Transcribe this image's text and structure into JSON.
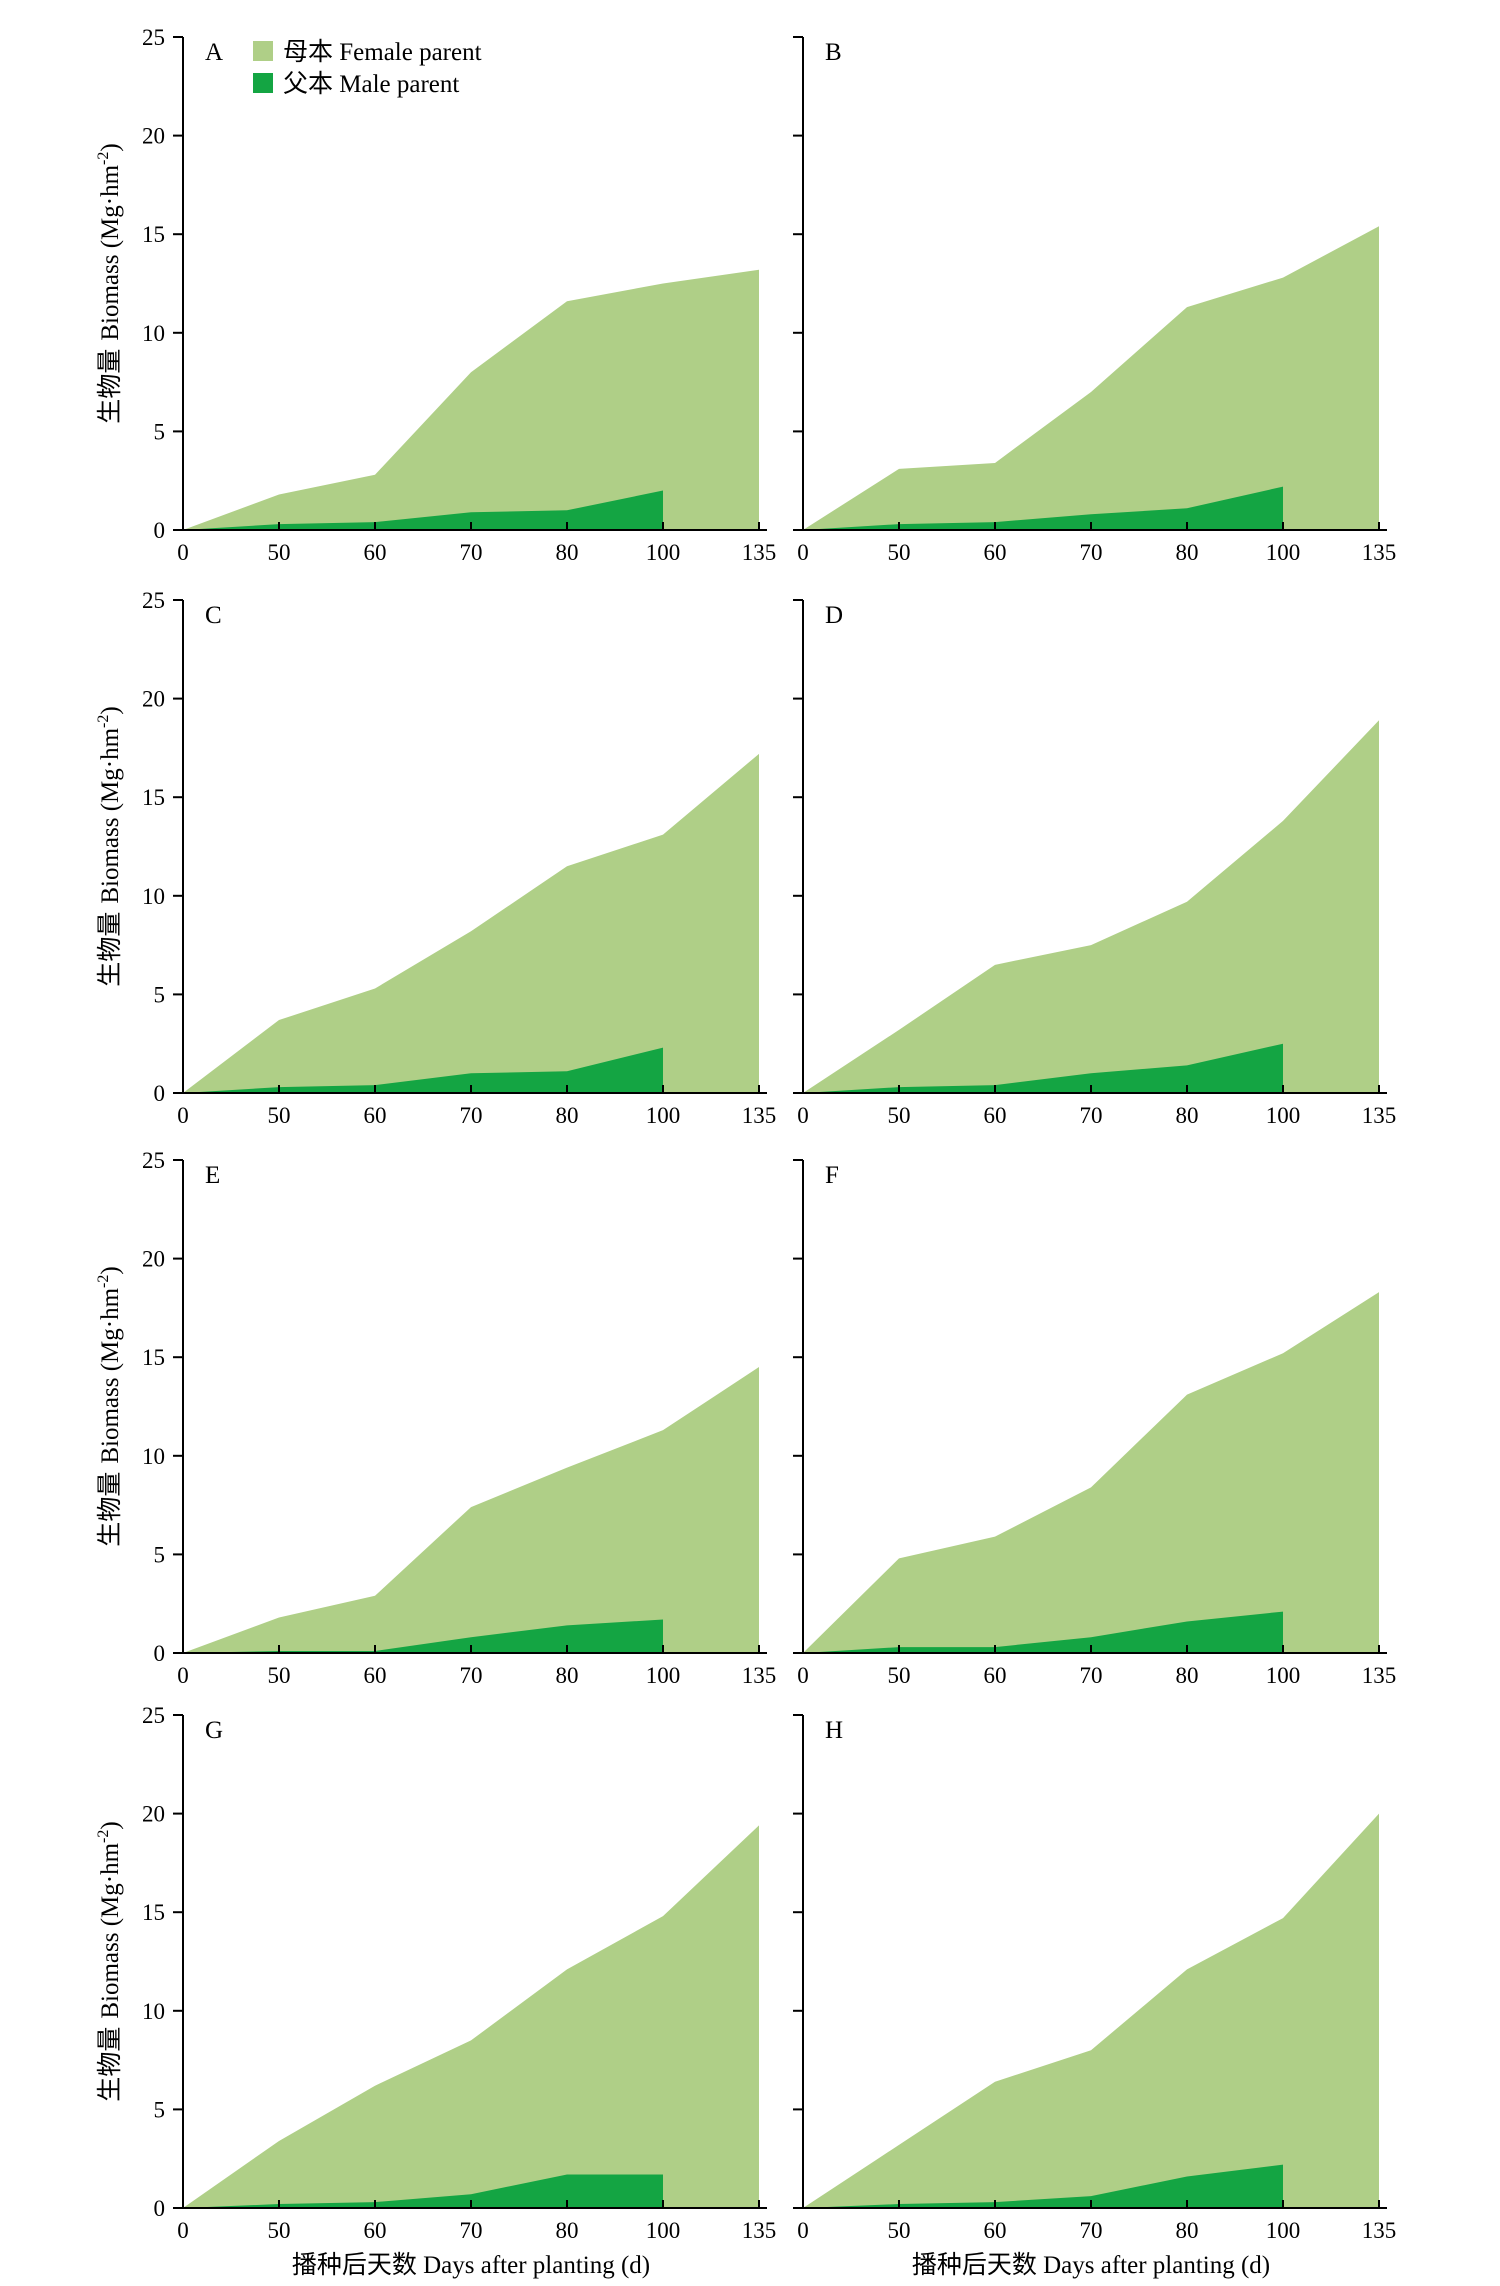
{
  "legend": {
    "female_label": "母本 Female parent",
    "male_label": "父本 Male parent"
  },
  "colors": {
    "female": "#afcf87",
    "male": "#14a543"
  },
  "axis": {
    "ylabel_cn": "生物量",
    "ylabel_en": "Biomass (Mg·hm",
    "ylabel_sup": "-2",
    "ylabel_close": ")",
    "xlabel": "播种后天数 Days after planting (d)"
  },
  "chart_data": {
    "type": "area",
    "categories": [
      "0",
      "50",
      "60",
      "70",
      "80",
      "100",
      "135"
    ],
    "ylim": [
      0,
      25
    ],
    "yticks": [
      0,
      5,
      10,
      15,
      20,
      25
    ],
    "grid": false,
    "legend_position": "top-left of panel A",
    "panels": [
      {
        "label": "A",
        "series": [
          {
            "name": "母本 Female parent",
            "values": [
              0,
              1.8,
              2.8,
              8.0,
              11.6,
              12.5,
              13.2
            ]
          },
          {
            "name": "父本 Male parent",
            "values": [
              0,
              0.3,
              0.4,
              0.9,
              1.0,
              2.0
            ]
          }
        ]
      },
      {
        "label": "B",
        "series": [
          {
            "name": "母本 Female parent",
            "values": [
              0,
              3.1,
              3.4,
              7.0,
              11.3,
              12.8,
              15.4
            ]
          },
          {
            "name": "父本 Male parent",
            "values": [
              0,
              0.3,
              0.4,
              0.8,
              1.1,
              2.2
            ]
          }
        ]
      },
      {
        "label": "C",
        "series": [
          {
            "name": "母本 Female parent",
            "values": [
              0,
              3.7,
              5.3,
              8.2,
              11.5,
              13.1,
              17.2
            ]
          },
          {
            "name": "父本 Male parent",
            "values": [
              0,
              0.3,
              0.4,
              1.0,
              1.1,
              2.3
            ]
          }
        ]
      },
      {
        "label": "D",
        "series": [
          {
            "name": "母本 Female parent",
            "values": [
              0,
              3.2,
              6.5,
              7.5,
              9.7,
              13.8,
              18.9
            ]
          },
          {
            "name": "父本 Male parent",
            "values": [
              0,
              0.3,
              0.4,
              1.0,
              1.4,
              2.5
            ]
          }
        ]
      },
      {
        "label": "E",
        "series": [
          {
            "name": "母本 Female parent",
            "values": [
              0,
              1.8,
              2.9,
              7.4,
              9.4,
              11.3,
              14.5
            ]
          },
          {
            "name": "父本 Male parent",
            "values": [
              0,
              0.1,
              0.1,
              0.8,
              1.4,
              1.7
            ]
          }
        ]
      },
      {
        "label": "F",
        "series": [
          {
            "name": "母本 Female parent",
            "values": [
              0,
              4.8,
              5.9,
              8.4,
              13.1,
              15.2,
              18.3
            ]
          },
          {
            "name": "父本 Male parent",
            "values": [
              0,
              0.3,
              0.3,
              0.8,
              1.6,
              2.1
            ]
          }
        ]
      },
      {
        "label": "G",
        "series": [
          {
            "name": "母本 Female parent",
            "values": [
              0,
              3.4,
              6.2,
              8.5,
              12.1,
              14.8,
              19.4
            ]
          },
          {
            "name": "父本 Male parent",
            "values": [
              0,
              0.2,
              0.3,
              0.7,
              1.7,
              1.7
            ]
          }
        ]
      },
      {
        "label": "H",
        "series": [
          {
            "name": "母本 Female parent",
            "values": [
              0,
              3.2,
              6.4,
              8.0,
              12.1,
              14.7,
              20.0
            ]
          },
          {
            "name": "父本 Male parent",
            "values": [
              0,
              0.2,
              0.3,
              0.6,
              1.6,
              2.2
            ]
          }
        ]
      }
    ]
  }
}
